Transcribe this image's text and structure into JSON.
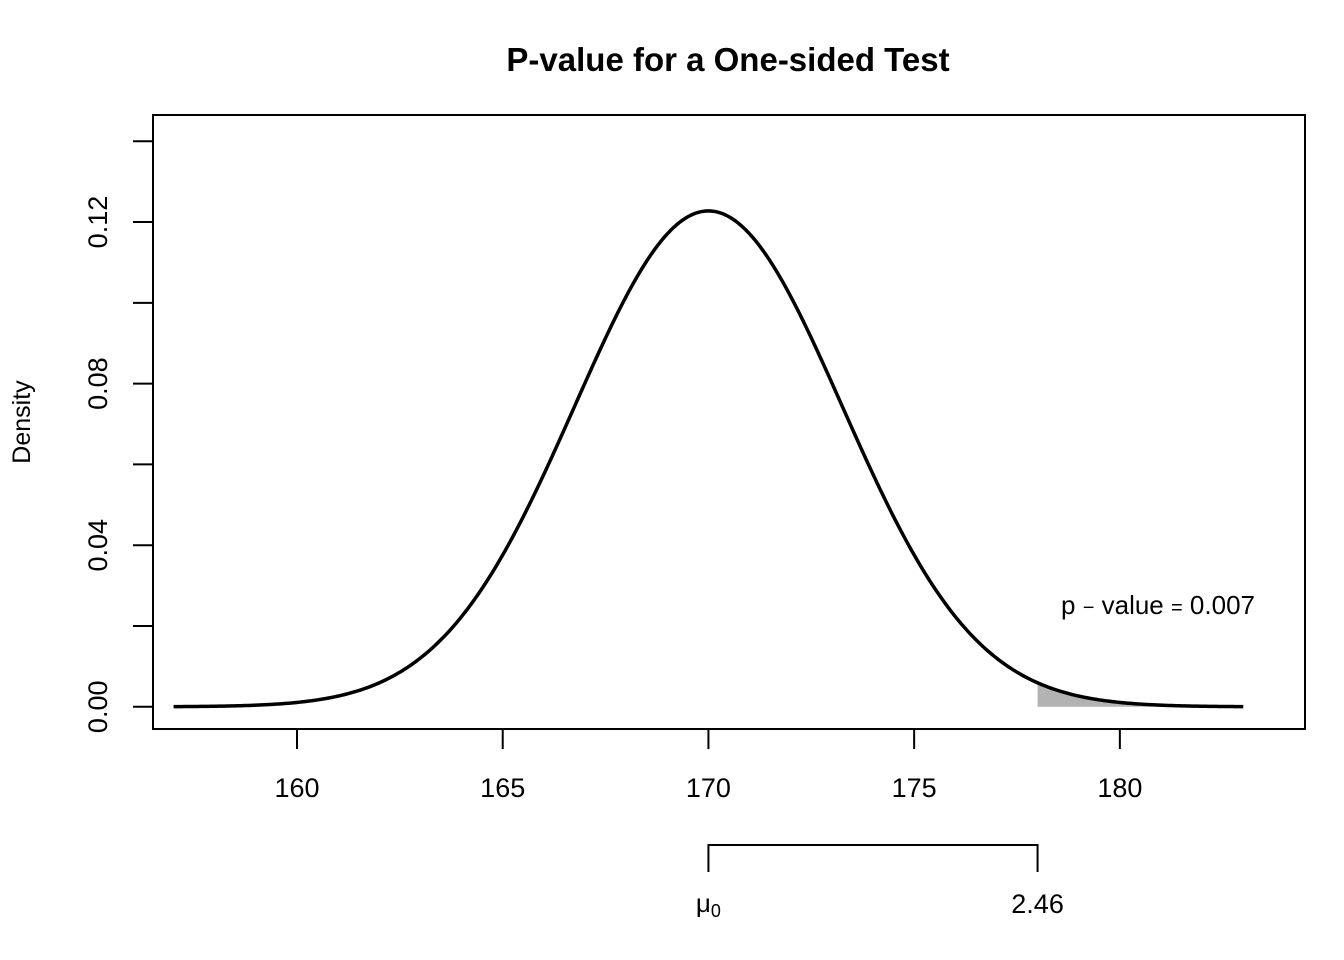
{
  "chart_data": {
    "type": "line",
    "title": "P-value for a One-sided Test",
    "ylabel": "Density",
    "xlabel": "",
    "xlim": [
      156.5,
      184.5
    ],
    "ylim": [
      -0.0055,
      0.1465
    ],
    "x_ticks": [
      160,
      165,
      170,
      175,
      180
    ],
    "x_tick_labels": [
      "160",
      "165",
      "170",
      "175",
      "180"
    ],
    "y_ticks": [
      0.0,
      0.02,
      0.04,
      0.06,
      0.08,
      0.1,
      0.12,
      0.14
    ],
    "y_tick_labels": [
      "0.00",
      "",
      "0.04",
      "",
      "0.08",
      "",
      "0.12",
      ""
    ],
    "grid": false,
    "series": [
      {
        "distribution": "normal",
        "mean": 170,
        "sd": 3.25,
        "x_range": [
          157,
          183
        ],
        "color": "#000000"
      }
    ],
    "shaded_region": {
      "x_from": 178,
      "x_to": 183,
      "color": "#b3b3b3",
      "label_prefix": "p",
      "label_op": "−",
      "label_word": "value",
      "label_eq": "=",
      "label_value": "0.007"
    },
    "bracket": {
      "x_from": 170,
      "x_to": 178,
      "left_label_symbol": "μ",
      "left_label_subscript": "0",
      "right_label": "2.46"
    }
  }
}
